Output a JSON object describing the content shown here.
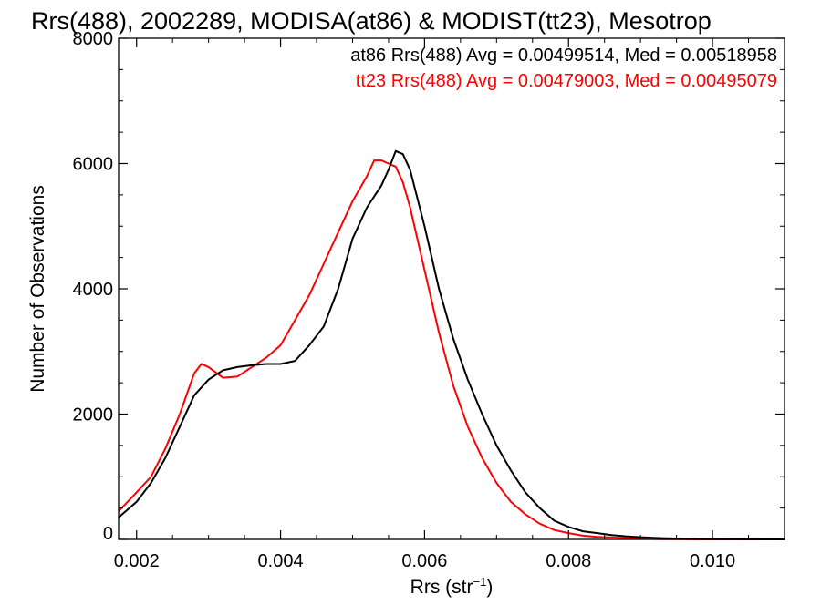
{
  "chart_data": {
    "type": "line",
    "title": "Rrs(488), 2002289, MODISA(at86) & MODIST(tt23), Mesotrop",
    "xlabel_main": "Rrs (str",
    "xlabel_sup": "−1",
    "xlabel_close": ")",
    "ylabel": "Number of Observations",
    "xlim": [
      0.00175,
      0.011
    ],
    "ylim": [
      0,
      8000
    ],
    "x_ticks": [
      0.002,
      0.004,
      0.006,
      0.008,
      0.01
    ],
    "x_tick_labels": [
      "0.002",
      "0.004",
      "0.006",
      "0.008",
      "0.010"
    ],
    "y_ticks": [
      0,
      2000,
      4000,
      6000,
      8000
    ],
    "y_tick_labels": [
      "0",
      "2000",
      "4000",
      "6000",
      "8000"
    ],
    "legend_placement": "top-right",
    "series": [
      {
        "name": "at86 Rrs(488) Avg = 0.00499514, Med = 0.00518958",
        "color": "#000000",
        "x": [
          0.00175,
          0.002,
          0.0022,
          0.0024,
          0.0026,
          0.0028,
          0.003,
          0.0032,
          0.0034,
          0.0036,
          0.0038,
          0.004,
          0.0042,
          0.0044,
          0.0046,
          0.0048,
          0.005,
          0.0052,
          0.0054,
          0.0055,
          0.0056,
          0.0057,
          0.0058,
          0.006,
          0.0062,
          0.0064,
          0.0066,
          0.0068,
          0.007,
          0.0072,
          0.0074,
          0.0076,
          0.0078,
          0.008,
          0.0082,
          0.0084,
          0.0086,
          0.0088,
          0.009,
          0.0093,
          0.0096,
          0.01,
          0.0105,
          0.011
        ],
        "y": [
          350,
          600,
          900,
          1300,
          1800,
          2300,
          2550,
          2700,
          2750,
          2780,
          2800,
          2800,
          2850,
          3100,
          3400,
          4000,
          4800,
          5300,
          5650,
          5900,
          6200,
          6150,
          5900,
          5000,
          4000,
          3200,
          2550,
          2000,
          1500,
          1100,
          750,
          500,
          300,
          200,
          130,
          100,
          70,
          50,
          35,
          20,
          10,
          5,
          2,
          0
        ]
      },
      {
        "name": "tt23 Rrs(488) Avg = 0.00479003, Med = 0.00495079",
        "color": "#ff0000",
        "x": [
          0.00175,
          0.002,
          0.0022,
          0.0024,
          0.0026,
          0.0028,
          0.0029,
          0.003,
          0.0032,
          0.0034,
          0.0036,
          0.0038,
          0.004,
          0.0042,
          0.0044,
          0.0046,
          0.0048,
          0.005,
          0.0052,
          0.0053,
          0.0054,
          0.0055,
          0.0056,
          0.0057,
          0.0058,
          0.006,
          0.0062,
          0.0064,
          0.0066,
          0.0068,
          0.007,
          0.0072,
          0.0074,
          0.0076,
          0.0078,
          0.008,
          0.0082,
          0.0084,
          0.0086,
          0.0088,
          0.009,
          0.0093,
          0.0096,
          0.01,
          0.0105,
          0.011
        ],
        "y": [
          450,
          750,
          1000,
          1450,
          2000,
          2650,
          2800,
          2750,
          2580,
          2600,
          2750,
          2900,
          3100,
          3500,
          3900,
          4400,
          4900,
          5400,
          5800,
          6050,
          6050,
          6000,
          5950,
          5700,
          5300,
          4300,
          3300,
          2450,
          1800,
          1300,
          900,
          600,
          400,
          250,
          150,
          100,
          60,
          40,
          30,
          20,
          10,
          5,
          2,
          0,
          0,
          0
        ]
      }
    ]
  }
}
